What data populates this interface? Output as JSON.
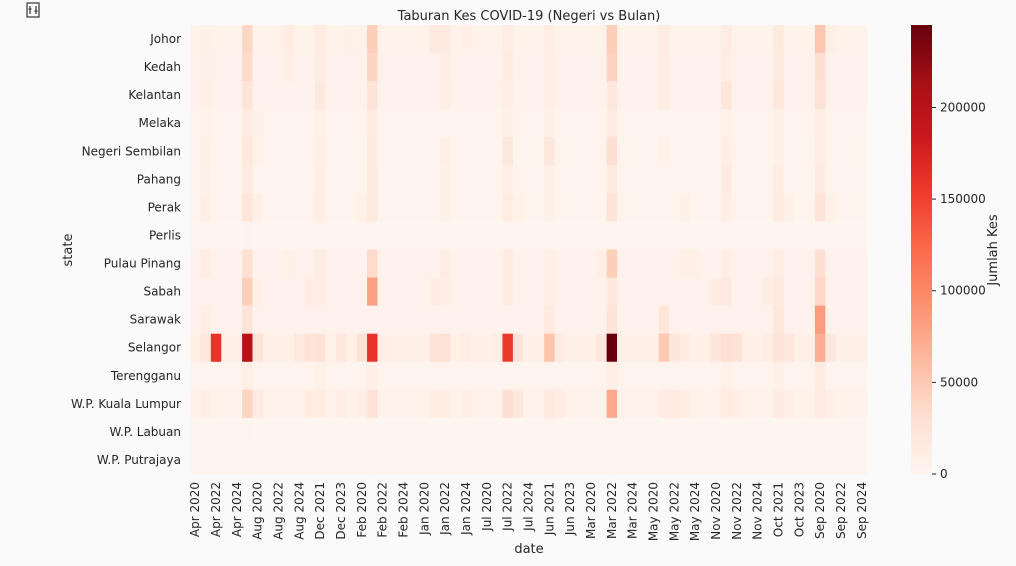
{
  "icons": {
    "toolbar": "adjust-icon"
  },
  "chart_data": {
    "type": "heatmap",
    "title": "Taburan Kes COVID-19 (Negeri vs Bulan)",
    "xlabel": "date",
    "ylabel": "state",
    "colorbar_label": "Jumlah Kes",
    "colormap": "Reds",
    "vmin": 0,
    "vmax": 245000,
    "colorbar_ticks": [
      0,
      50000,
      100000,
      150000,
      200000
    ],
    "x_tick_labels": [
      "Apr 2020",
      "Apr 2022",
      "Apr 2024",
      "Aug 2020",
      "Aug 2022",
      "Aug 2024",
      "Dec 2021",
      "Dec 2023",
      "Feb 2020",
      "Feb 2022",
      "Feb 2024",
      "Jan 2020",
      "Jan 2022",
      "Jan 2024",
      "Jul 2020",
      "Jul 2022",
      "Jul 2024",
      "Jun 2021",
      "Jun 2023",
      "Mar 2020",
      "Mar 2022",
      "Mar 2024",
      "May 2020",
      "May 2022",
      "May 2024",
      "Nov 2020",
      "Nov 2022",
      "Nov 2024",
      "Oct 2021",
      "Oct 2023",
      "Sep 2020",
      "Sep 2022",
      "Sep 2024"
    ],
    "n_columns": 65,
    "y": [
      "Johor",
      "Kedah",
      "Kelantan",
      "Melaka",
      "Negeri Sembilan",
      "Pahang",
      "Perak",
      "Perlis",
      "Pulau Pinang",
      "Sabah",
      "Sarawak",
      "Selangor",
      "Terengganu",
      "W.P. Kuala Lumpur",
      "W.P. Labuan",
      "W.P. Putrajaya"
    ],
    "base_values": [
      5000,
      4500,
      4000,
      2500,
      3500,
      2500,
      3500,
      300,
      4000,
      4000,
      4000,
      8000,
      2500,
      5000,
      200,
      300
    ],
    "cells": [
      {
        "y": 0,
        "x": 1,
        "v": 8000
      },
      {
        "y": 0,
        "x": 5,
        "v": 38000
      },
      {
        "y": 0,
        "x": 9,
        "v": 12000
      },
      {
        "y": 0,
        "x": 12,
        "v": 14000
      },
      {
        "y": 0,
        "x": 15,
        "v": 8000
      },
      {
        "y": 0,
        "x": 17,
        "v": 45000
      },
      {
        "y": 0,
        "x": 23,
        "v": 16000
      },
      {
        "y": 0,
        "x": 24,
        "v": 16000
      },
      {
        "y": 0,
        "x": 26,
        "v": 9000
      },
      {
        "y": 0,
        "x": 30,
        "v": 12000
      },
      {
        "y": 0,
        "x": 34,
        "v": 12000
      },
      {
        "y": 0,
        "x": 40,
        "v": 45000
      },
      {
        "y": 0,
        "x": 45,
        "v": 14000
      },
      {
        "y": 0,
        "x": 51,
        "v": 14000
      },
      {
        "y": 0,
        "x": 56,
        "v": 18000
      },
      {
        "y": 0,
        "x": 60,
        "v": 52000
      },
      {
        "y": 0,
        "x": 61,
        "v": 10000
      },
      {
        "y": 1,
        "x": 1,
        "v": 7000
      },
      {
        "y": 1,
        "x": 5,
        "v": 35000
      },
      {
        "y": 1,
        "x": 9,
        "v": 10000
      },
      {
        "y": 1,
        "x": 12,
        "v": 11000
      },
      {
        "y": 1,
        "x": 17,
        "v": 40000
      },
      {
        "y": 1,
        "x": 24,
        "v": 12000
      },
      {
        "y": 1,
        "x": 30,
        "v": 14000
      },
      {
        "y": 1,
        "x": 34,
        "v": 10000
      },
      {
        "y": 1,
        "x": 40,
        "v": 42000
      },
      {
        "y": 1,
        "x": 45,
        "v": 12000
      },
      {
        "y": 1,
        "x": 51,
        "v": 12000
      },
      {
        "y": 1,
        "x": 56,
        "v": 16000
      },
      {
        "y": 1,
        "x": 60,
        "v": 30000
      },
      {
        "y": 2,
        "x": 1,
        "v": 9000
      },
      {
        "y": 2,
        "x": 5,
        "v": 25000
      },
      {
        "y": 2,
        "x": 12,
        "v": 18000
      },
      {
        "y": 2,
        "x": 17,
        "v": 25000
      },
      {
        "y": 2,
        "x": 24,
        "v": 10000
      },
      {
        "y": 2,
        "x": 30,
        "v": 10000
      },
      {
        "y": 2,
        "x": 34,
        "v": 10000
      },
      {
        "y": 2,
        "x": 40,
        "v": 20000
      },
      {
        "y": 2,
        "x": 45,
        "v": 12000
      },
      {
        "y": 2,
        "x": 51,
        "v": 22000
      },
      {
        "y": 2,
        "x": 56,
        "v": 20000
      },
      {
        "y": 2,
        "x": 60,
        "v": 28000
      },
      {
        "y": 3,
        "x": 1,
        "v": 5000
      },
      {
        "y": 3,
        "x": 5,
        "v": 14000
      },
      {
        "y": 3,
        "x": 6,
        "v": 6000
      },
      {
        "y": 3,
        "x": 12,
        "v": 8000
      },
      {
        "y": 3,
        "x": 17,
        "v": 14000
      },
      {
        "y": 3,
        "x": 30,
        "v": 8000
      },
      {
        "y": 3,
        "x": 34,
        "v": 8000
      },
      {
        "y": 3,
        "x": 40,
        "v": 14000
      },
      {
        "y": 3,
        "x": 51,
        "v": 8000
      },
      {
        "y": 3,
        "x": 56,
        "v": 8000
      },
      {
        "y": 3,
        "x": 60,
        "v": 10000
      },
      {
        "y": 4,
        "x": 1,
        "v": 8000
      },
      {
        "y": 4,
        "x": 5,
        "v": 18000
      },
      {
        "y": 4,
        "x": 6,
        "v": 8000
      },
      {
        "y": 4,
        "x": 12,
        "v": 10000
      },
      {
        "y": 4,
        "x": 17,
        "v": 16000
      },
      {
        "y": 4,
        "x": 24,
        "v": 9000
      },
      {
        "y": 4,
        "x": 30,
        "v": 20000
      },
      {
        "y": 4,
        "x": 34,
        "v": 20000
      },
      {
        "y": 4,
        "x": 40,
        "v": 30000
      },
      {
        "y": 4,
        "x": 45,
        "v": 8000
      },
      {
        "y": 4,
        "x": 51,
        "v": 10000
      },
      {
        "y": 4,
        "x": 56,
        "v": 8000
      },
      {
        "y": 4,
        "x": 60,
        "v": 10000
      },
      {
        "y": 5,
        "x": 1,
        "v": 6000
      },
      {
        "y": 5,
        "x": 5,
        "v": 14000
      },
      {
        "y": 5,
        "x": 12,
        "v": 12000
      },
      {
        "y": 5,
        "x": 17,
        "v": 18000
      },
      {
        "y": 5,
        "x": 24,
        "v": 8000
      },
      {
        "y": 5,
        "x": 30,
        "v": 9000
      },
      {
        "y": 5,
        "x": 34,
        "v": 8000
      },
      {
        "y": 5,
        "x": 40,
        "v": 18000
      },
      {
        "y": 5,
        "x": 51,
        "v": 14000
      },
      {
        "y": 5,
        "x": 56,
        "v": 12000
      },
      {
        "y": 5,
        "x": 60,
        "v": 16000
      },
      {
        "y": 6,
        "x": 1,
        "v": 10000
      },
      {
        "y": 6,
        "x": 5,
        "v": 22000
      },
      {
        "y": 6,
        "x": 6,
        "v": 9000
      },
      {
        "y": 6,
        "x": 12,
        "v": 12000
      },
      {
        "y": 6,
        "x": 16,
        "v": 8000
      },
      {
        "y": 6,
        "x": 17,
        "v": 18000
      },
      {
        "y": 6,
        "x": 24,
        "v": 8000
      },
      {
        "y": 6,
        "x": 30,
        "v": 12000
      },
      {
        "y": 6,
        "x": 31,
        "v": 8000
      },
      {
        "y": 6,
        "x": 34,
        "v": 8000
      },
      {
        "y": 6,
        "x": 40,
        "v": 25000
      },
      {
        "y": 6,
        "x": 47,
        "v": 8000
      },
      {
        "y": 6,
        "x": 51,
        "v": 10000
      },
      {
        "y": 6,
        "x": 56,
        "v": 14000
      },
      {
        "y": 6,
        "x": 57,
        "v": 8000
      },
      {
        "y": 6,
        "x": 60,
        "v": 25000
      },
      {
        "y": 6,
        "x": 61,
        "v": 8000
      },
      {
        "y": 7,
        "x": 5,
        "v": 2500
      },
      {
        "y": 7,
        "x": 17,
        "v": 2500
      },
      {
        "y": 7,
        "x": 40,
        "v": 3000
      },
      {
        "y": 8,
        "x": 1,
        "v": 12000
      },
      {
        "y": 8,
        "x": 5,
        "v": 30000
      },
      {
        "y": 8,
        "x": 9,
        "v": 8000
      },
      {
        "y": 8,
        "x": 12,
        "v": 12000
      },
      {
        "y": 8,
        "x": 17,
        "v": 35000
      },
      {
        "y": 8,
        "x": 24,
        "v": 12000
      },
      {
        "y": 8,
        "x": 30,
        "v": 14000
      },
      {
        "y": 8,
        "x": 34,
        "v": 9000
      },
      {
        "y": 8,
        "x": 39,
        "v": 10000
      },
      {
        "y": 8,
        "x": 40,
        "v": 45000
      },
      {
        "y": 8,
        "x": 47,
        "v": 9000
      },
      {
        "y": 8,
        "x": 48,
        "v": 9000
      },
      {
        "y": 8,
        "x": 51,
        "v": 10000
      },
      {
        "y": 8,
        "x": 56,
        "v": 12000
      },
      {
        "y": 8,
        "x": 60,
        "v": 30000
      },
      {
        "y": 9,
        "x": 5,
        "v": 45000
      },
      {
        "y": 9,
        "x": 6,
        "v": 9000
      },
      {
        "y": 9,
        "x": 11,
        "v": 11000
      },
      {
        "y": 9,
        "x": 12,
        "v": 11000
      },
      {
        "y": 9,
        "x": 17,
        "v": 80000
      },
      {
        "y": 9,
        "x": 23,
        "v": 14000
      },
      {
        "y": 9,
        "x": 24,
        "v": 10000
      },
      {
        "y": 9,
        "x": 30,
        "v": 14000
      },
      {
        "y": 9,
        "x": 34,
        "v": 10000
      },
      {
        "y": 9,
        "x": 40,
        "v": 20000
      },
      {
        "y": 9,
        "x": 50,
        "v": 14000
      },
      {
        "y": 9,
        "x": 51,
        "v": 16000
      },
      {
        "y": 9,
        "x": 55,
        "v": 12000
      },
      {
        "y": 9,
        "x": 56,
        "v": 16000
      },
      {
        "y": 9,
        "x": 60,
        "v": 38000
      },
      {
        "y": 10,
        "x": 1,
        "v": 10000
      },
      {
        "y": 10,
        "x": 5,
        "v": 25000
      },
      {
        "y": 10,
        "x": 34,
        "v": 16000
      },
      {
        "y": 10,
        "x": 40,
        "v": 25000
      },
      {
        "y": 10,
        "x": 45,
        "v": 22000
      },
      {
        "y": 10,
        "x": 56,
        "v": 20000
      },
      {
        "y": 10,
        "x": 60,
        "v": 85000
      },
      {
        "y": 11,
        "x": 1,
        "v": 20000
      },
      {
        "y": 11,
        "x": 2,
        "v": 160000
      },
      {
        "y": 11,
        "x": 5,
        "v": 200000
      },
      {
        "y": 11,
        "x": 6,
        "v": 26000
      },
      {
        "y": 11,
        "x": 10,
        "v": 18000
      },
      {
        "y": 11,
        "x": 11,
        "v": 26000
      },
      {
        "y": 11,
        "x": 12,
        "v": 28000
      },
      {
        "y": 11,
        "x": 14,
        "v": 20000
      },
      {
        "y": 11,
        "x": 16,
        "v": 28000
      },
      {
        "y": 11,
        "x": 17,
        "v": 160000
      },
      {
        "y": 11,
        "x": 18,
        "v": 10000
      },
      {
        "y": 11,
        "x": 23,
        "v": 25000
      },
      {
        "y": 11,
        "x": 24,
        "v": 28000
      },
      {
        "y": 11,
        "x": 26,
        "v": 12000
      },
      {
        "y": 11,
        "x": 29,
        "v": 12000
      },
      {
        "y": 11,
        "x": 30,
        "v": 155000
      },
      {
        "y": 11,
        "x": 31,
        "v": 25000
      },
      {
        "y": 11,
        "x": 34,
        "v": 55000
      },
      {
        "y": 11,
        "x": 35,
        "v": 14000
      },
      {
        "y": 11,
        "x": 39,
        "v": 20000
      },
      {
        "y": 11,
        "x": 40,
        "v": 245000
      },
      {
        "y": 11,
        "x": 45,
        "v": 50000
      },
      {
        "y": 11,
        "x": 46,
        "v": 22000
      },
      {
        "y": 11,
        "x": 47,
        "v": 14000
      },
      {
        "y": 11,
        "x": 50,
        "v": 22000
      },
      {
        "y": 11,
        "x": 51,
        "v": 30000
      },
      {
        "y": 11,
        "x": 52,
        "v": 28000
      },
      {
        "y": 11,
        "x": 55,
        "v": 12000
      },
      {
        "y": 11,
        "x": 56,
        "v": 25000
      },
      {
        "y": 11,
        "x": 57,
        "v": 20000
      },
      {
        "y": 11,
        "x": 60,
        "v": 70000
      },
      {
        "y": 11,
        "x": 61,
        "v": 20000
      },
      {
        "y": 12,
        "x": 5,
        "v": 10000
      },
      {
        "y": 12,
        "x": 12,
        "v": 8000
      },
      {
        "y": 12,
        "x": 17,
        "v": 9000
      },
      {
        "y": 12,
        "x": 40,
        "v": 10000
      },
      {
        "y": 12,
        "x": 51,
        "v": 8000
      },
      {
        "y": 12,
        "x": 56,
        "v": 8000
      },
      {
        "y": 12,
        "x": 60,
        "v": 14000
      },
      {
        "y": 13,
        "x": 1,
        "v": 10000
      },
      {
        "y": 13,
        "x": 5,
        "v": 40000
      },
      {
        "y": 13,
        "x": 6,
        "v": 16000
      },
      {
        "y": 13,
        "x": 11,
        "v": 12000
      },
      {
        "y": 13,
        "x": 12,
        "v": 12000
      },
      {
        "y": 13,
        "x": 14,
        "v": 12000
      },
      {
        "y": 13,
        "x": 16,
        "v": 10000
      },
      {
        "y": 13,
        "x": 17,
        "v": 28000
      },
      {
        "y": 13,
        "x": 23,
        "v": 12000
      },
      {
        "y": 13,
        "x": 24,
        "v": 12000
      },
      {
        "y": 13,
        "x": 26,
        "v": 9000
      },
      {
        "y": 13,
        "x": 30,
        "v": 30000
      },
      {
        "y": 13,
        "x": 31,
        "v": 20000
      },
      {
        "y": 13,
        "x": 34,
        "v": 16000
      },
      {
        "y": 13,
        "x": 35,
        "v": 12000
      },
      {
        "y": 13,
        "x": 40,
        "v": 75000
      },
      {
        "y": 13,
        "x": 45,
        "v": 14000
      },
      {
        "y": 13,
        "x": 46,
        "v": 14000
      },
      {
        "y": 13,
        "x": 47,
        "v": 12000
      },
      {
        "y": 13,
        "x": 51,
        "v": 14000
      },
      {
        "y": 13,
        "x": 52,
        "v": 10000
      },
      {
        "y": 13,
        "x": 56,
        "v": 16000
      },
      {
        "y": 13,
        "x": 57,
        "v": 9000
      },
      {
        "y": 13,
        "x": 60,
        "v": 14000
      },
      {
        "y": 13,
        "x": 61,
        "v": 10000
      },
      {
        "y": 14,
        "x": 5,
        "v": 3000
      },
      {
        "y": 14,
        "x": 17,
        "v": 3000
      },
      {
        "y": 14,
        "x": 34,
        "v": 3500
      },
      {
        "y": 14,
        "x": 40,
        "v": 3000
      },
      {
        "y": 15,
        "x": 5,
        "v": 2000
      },
      {
        "y": 15,
        "x": 17,
        "v": 2500
      },
      {
        "y": 15,
        "x": 40,
        "v": 3000
      }
    ]
  }
}
